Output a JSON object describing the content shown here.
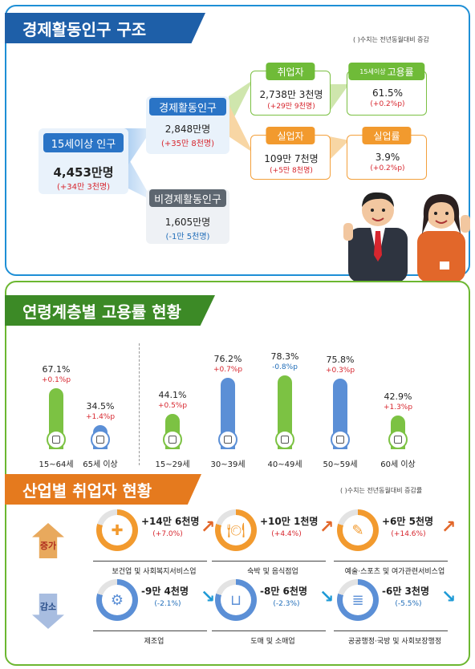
{
  "sections": {
    "structure_title": "경제활동인구 구조",
    "structure_note": "( )수치는 전년동월대비 증감",
    "age_title": "연령계층별 고용률 현황",
    "industry_title": "산업별 취업자 현황",
    "industry_note": "( )수치는 전년동월대비 증감률"
  },
  "structure": {
    "pop15": {
      "label": "15세이상 인구",
      "value": "4,453만명",
      "change": "(+34만 3천명)"
    },
    "active": {
      "label": "경제활동인구",
      "value": "2,848만명",
      "change": "(+35만 8천명)"
    },
    "inactive": {
      "label": "비경제활동인구",
      "value": "1,605만명",
      "change": "(-1만 5천명)"
    },
    "employed": {
      "label": "취업자",
      "value": "2,738만 3천명",
      "change": "(+29만 9천명)"
    },
    "unemployed": {
      "label": "실업자",
      "value": "109만 7천명",
      "change": "(+5만 8천명)"
    },
    "emp_rate": {
      "label_small": "15세이상",
      "label": "고용률",
      "value": "61.5%",
      "change": "(+0.2%p)"
    },
    "unemp_rate": {
      "label": "실업률",
      "value": "3.9%",
      "change": "(+0.2%p)"
    }
  },
  "chart_data": {
    "type": "bar",
    "categories": [
      "15~64세",
      "65세 이상",
      "15~29세",
      "30~39세",
      "40~49세",
      "50~59세",
      "60세 이상"
    ],
    "values": [
      67.1,
      34.5,
      44.1,
      76.2,
      78.3,
      75.8,
      42.9
    ],
    "value_labels": [
      "67.1%",
      "34.5%",
      "44.1%",
      "76.2%",
      "78.3%",
      "75.8%",
      "42.9%"
    ],
    "changes": [
      "+0.1%p",
      "+1.4%p",
      "+0.5%p",
      "+0.7%p",
      "-0.8%p",
      "+0.3%p",
      "+1.3%p"
    ],
    "bar_colors": [
      "#7cc243",
      "#5b8fd6",
      "#7cc243",
      "#5b8fd6",
      "#7cc243",
      "#5b8fd6",
      "#7cc243"
    ],
    "change_colors": [
      "#d7262e",
      "#d7262e",
      "#d7262e",
      "#d7262e",
      "#1f6cb8",
      "#d7262e",
      "#d7262e"
    ]
  },
  "industry": {
    "increase_label": "증가",
    "decrease_label": "감소",
    "increase": [
      {
        "amount": "+14만 6천명",
        "rate": "(+7.0%)",
        "name": "보건업 및 사회복지서비스업",
        "icon": "first-aid-kit-icon"
      },
      {
        "amount": "+10만 1천명",
        "rate": "(+4.4%)",
        "name": "숙박 및 음식점업",
        "icon": "dining-icon"
      },
      {
        "amount": "+6만 5천명",
        "rate": "(+14.6%)",
        "name": "예술·스포츠 및 여가관련서비스업",
        "icon": "art-palette-icon"
      }
    ],
    "decrease": [
      {
        "amount": "-9만 4천명",
        "rate": "(-2.1%)",
        "name": "제조업",
        "icon": "gears-icon"
      },
      {
        "amount": "-8만 6천명",
        "rate": "(-2.3%)",
        "name": "도매 및 소매업",
        "icon": "shopping-basket-icon"
      },
      {
        "amount": "-6만 3천명",
        "rate": "(-5.5%)",
        "name": "공공행정·국방 및 사회보장행정",
        "icon": "document-scroll-icon"
      }
    ],
    "colors": {
      "increase": "#f29a2e",
      "decrease": "#5b8fd6",
      "up_arrow": "#e2672a",
      "down_arrow": "#1e9ad6"
    }
  }
}
